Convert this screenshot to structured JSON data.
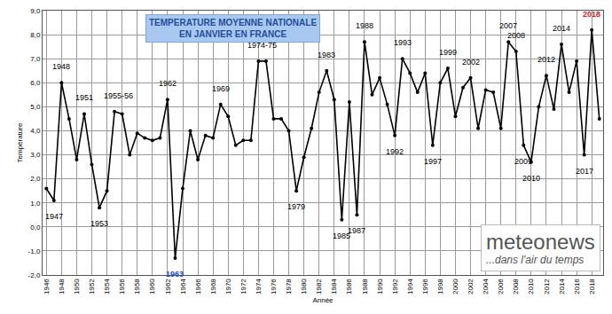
{
  "chart_data": {
    "type": "line",
    "title": "TEMPERATURE MOYENNE NATIONALE\nEN JANVIER EN FRANCE",
    "x_label": "Année",
    "y_label": "Température",
    "x": [
      1946,
      1947,
      1948,
      1949,
      1950,
      1951,
      1952,
      1953,
      1954,
      1955,
      1956,
      1957,
      1958,
      1959,
      1960,
      1961,
      1962,
      1963,
      1964,
      1965,
      1966,
      1967,
      1968,
      1969,
      1970,
      1971,
      1972,
      1973,
      1974,
      1975,
      1976,
      1977,
      1978,
      1979,
      1980,
      1981,
      1982,
      1983,
      1984,
      1985,
      1986,
      1987,
      1988,
      1989,
      1990,
      1991,
      1992,
      1993,
      1994,
      1995,
      1996,
      1997,
      1998,
      1999,
      2000,
      2001,
      2002,
      2003,
      2004,
      2005,
      2006,
      2007,
      2008,
      2009,
      2010,
      2011,
      2012,
      2013,
      2014,
      2015,
      2016,
      2017,
      2018,
      2019
    ],
    "values": [
      1.6,
      1.1,
      6.0,
      4.5,
      2.8,
      4.7,
      2.6,
      0.8,
      1.5,
      4.8,
      4.7,
      3.0,
      3.9,
      3.7,
      3.6,
      3.7,
      5.3,
      -1.3,
      1.6,
      4.0,
      2.8,
      3.8,
      3.7,
      5.1,
      4.6,
      3.4,
      3.6,
      3.6,
      6.9,
      6.9,
      4.5,
      4.5,
      4.0,
      1.5,
      2.9,
      4.1,
      5.6,
      6.5,
      5.3,
      0.3,
      5.2,
      0.5,
      7.7,
      5.5,
      6.2,
      5.1,
      3.8,
      7.0,
      6.4,
      5.6,
      6.4,
      3.4,
      6.0,
      6.6,
      4.6,
      5.8,
      6.2,
      4.1,
      5.7,
      5.6,
      4.1,
      7.7,
      7.3,
      3.4,
      2.7,
      5.0,
      6.3,
      4.9,
      7.6,
      5.6,
      6.9,
      3.0,
      8.2,
      4.5
    ],
    "color": "#000000",
    "marker": "circle",
    "line_style": "solid",
    "xlim": [
      1945.5,
      2019.5
    ],
    "xticks": [
      1946,
      1948,
      1950,
      1952,
      1954,
      1956,
      1958,
      1960,
      1962,
      1964,
      1966,
      1968,
      1970,
      1972,
      1974,
      1976,
      1978,
      1980,
      1982,
      1984,
      1986,
      1988,
      1990,
      1992,
      1994,
      1996,
      1998,
      2000,
      2002,
      2004,
      2006,
      2008,
      2010,
      2012,
      2014,
      2016,
      2018
    ],
    "ylim": [
      -2,
      9
    ],
    "yticks": [
      {
        "value": -2,
        "label": "-2,0"
      },
      {
        "value": -1,
        "label": "-1,0"
      },
      {
        "value": 0,
        "label": "0,0"
      },
      {
        "value": 1,
        "label": "1,0"
      },
      {
        "value": 2,
        "label": "2,0"
      },
      {
        "value": 3,
        "label": "3,0"
      },
      {
        "value": 4,
        "label": "4,0"
      },
      {
        "value": 5,
        "label": "5,0"
      },
      {
        "value": 6,
        "label": "6,0"
      },
      {
        "value": 7,
        "label": "7,0"
      },
      {
        "value": 8,
        "label": "8,0"
      },
      {
        "value": 9,
        "label": "9,0"
      }
    ],
    "grid": true,
    "annotations": [
      {
        "x": 1947,
        "text": "1947"
      },
      {
        "x": 1948,
        "text": "1948"
      },
      {
        "x": 1951,
        "text": "1951"
      },
      {
        "x": 1953,
        "text": "1953"
      },
      {
        "x": 1955.5,
        "text": "1955-56"
      },
      {
        "x": 1962,
        "text": "1962"
      },
      {
        "x": 1963,
        "text": "1963",
        "color": "#1f4fd1"
      },
      {
        "x": 1969,
        "text": "1969"
      },
      {
        "x": 1974.5,
        "text": "1974-75"
      },
      {
        "x": 1979,
        "text": "1979"
      },
      {
        "x": 1983,
        "text": "1983"
      },
      {
        "x": 1985,
        "text": "1985"
      },
      {
        "x": 1987,
        "text": "1987"
      },
      {
        "x": 1988,
        "text": "1988"
      },
      {
        "x": 1992,
        "text": "1992"
      },
      {
        "x": 1993,
        "text": "1993"
      },
      {
        "x": 1997,
        "text": "1997"
      },
      {
        "x": 1999,
        "text": "1999"
      },
      {
        "x": 2002,
        "text": "2002"
      },
      {
        "x": 2007,
        "text": "2007"
      },
      {
        "x": 2008,
        "text": "2008"
      },
      {
        "x": 2009,
        "text": "2009"
      },
      {
        "x": 2010,
        "text": "2010"
      },
      {
        "x": 2012,
        "text": "2012"
      },
      {
        "x": 2014,
        "text": "2014"
      },
      {
        "x": 2017,
        "text": "2017"
      },
      {
        "x": 2018,
        "text": "2018",
        "color": "#e02020"
      }
    ],
    "logo": {
      "text": "meteonews",
      "tagline": "...dans l'air du temps"
    }
  }
}
